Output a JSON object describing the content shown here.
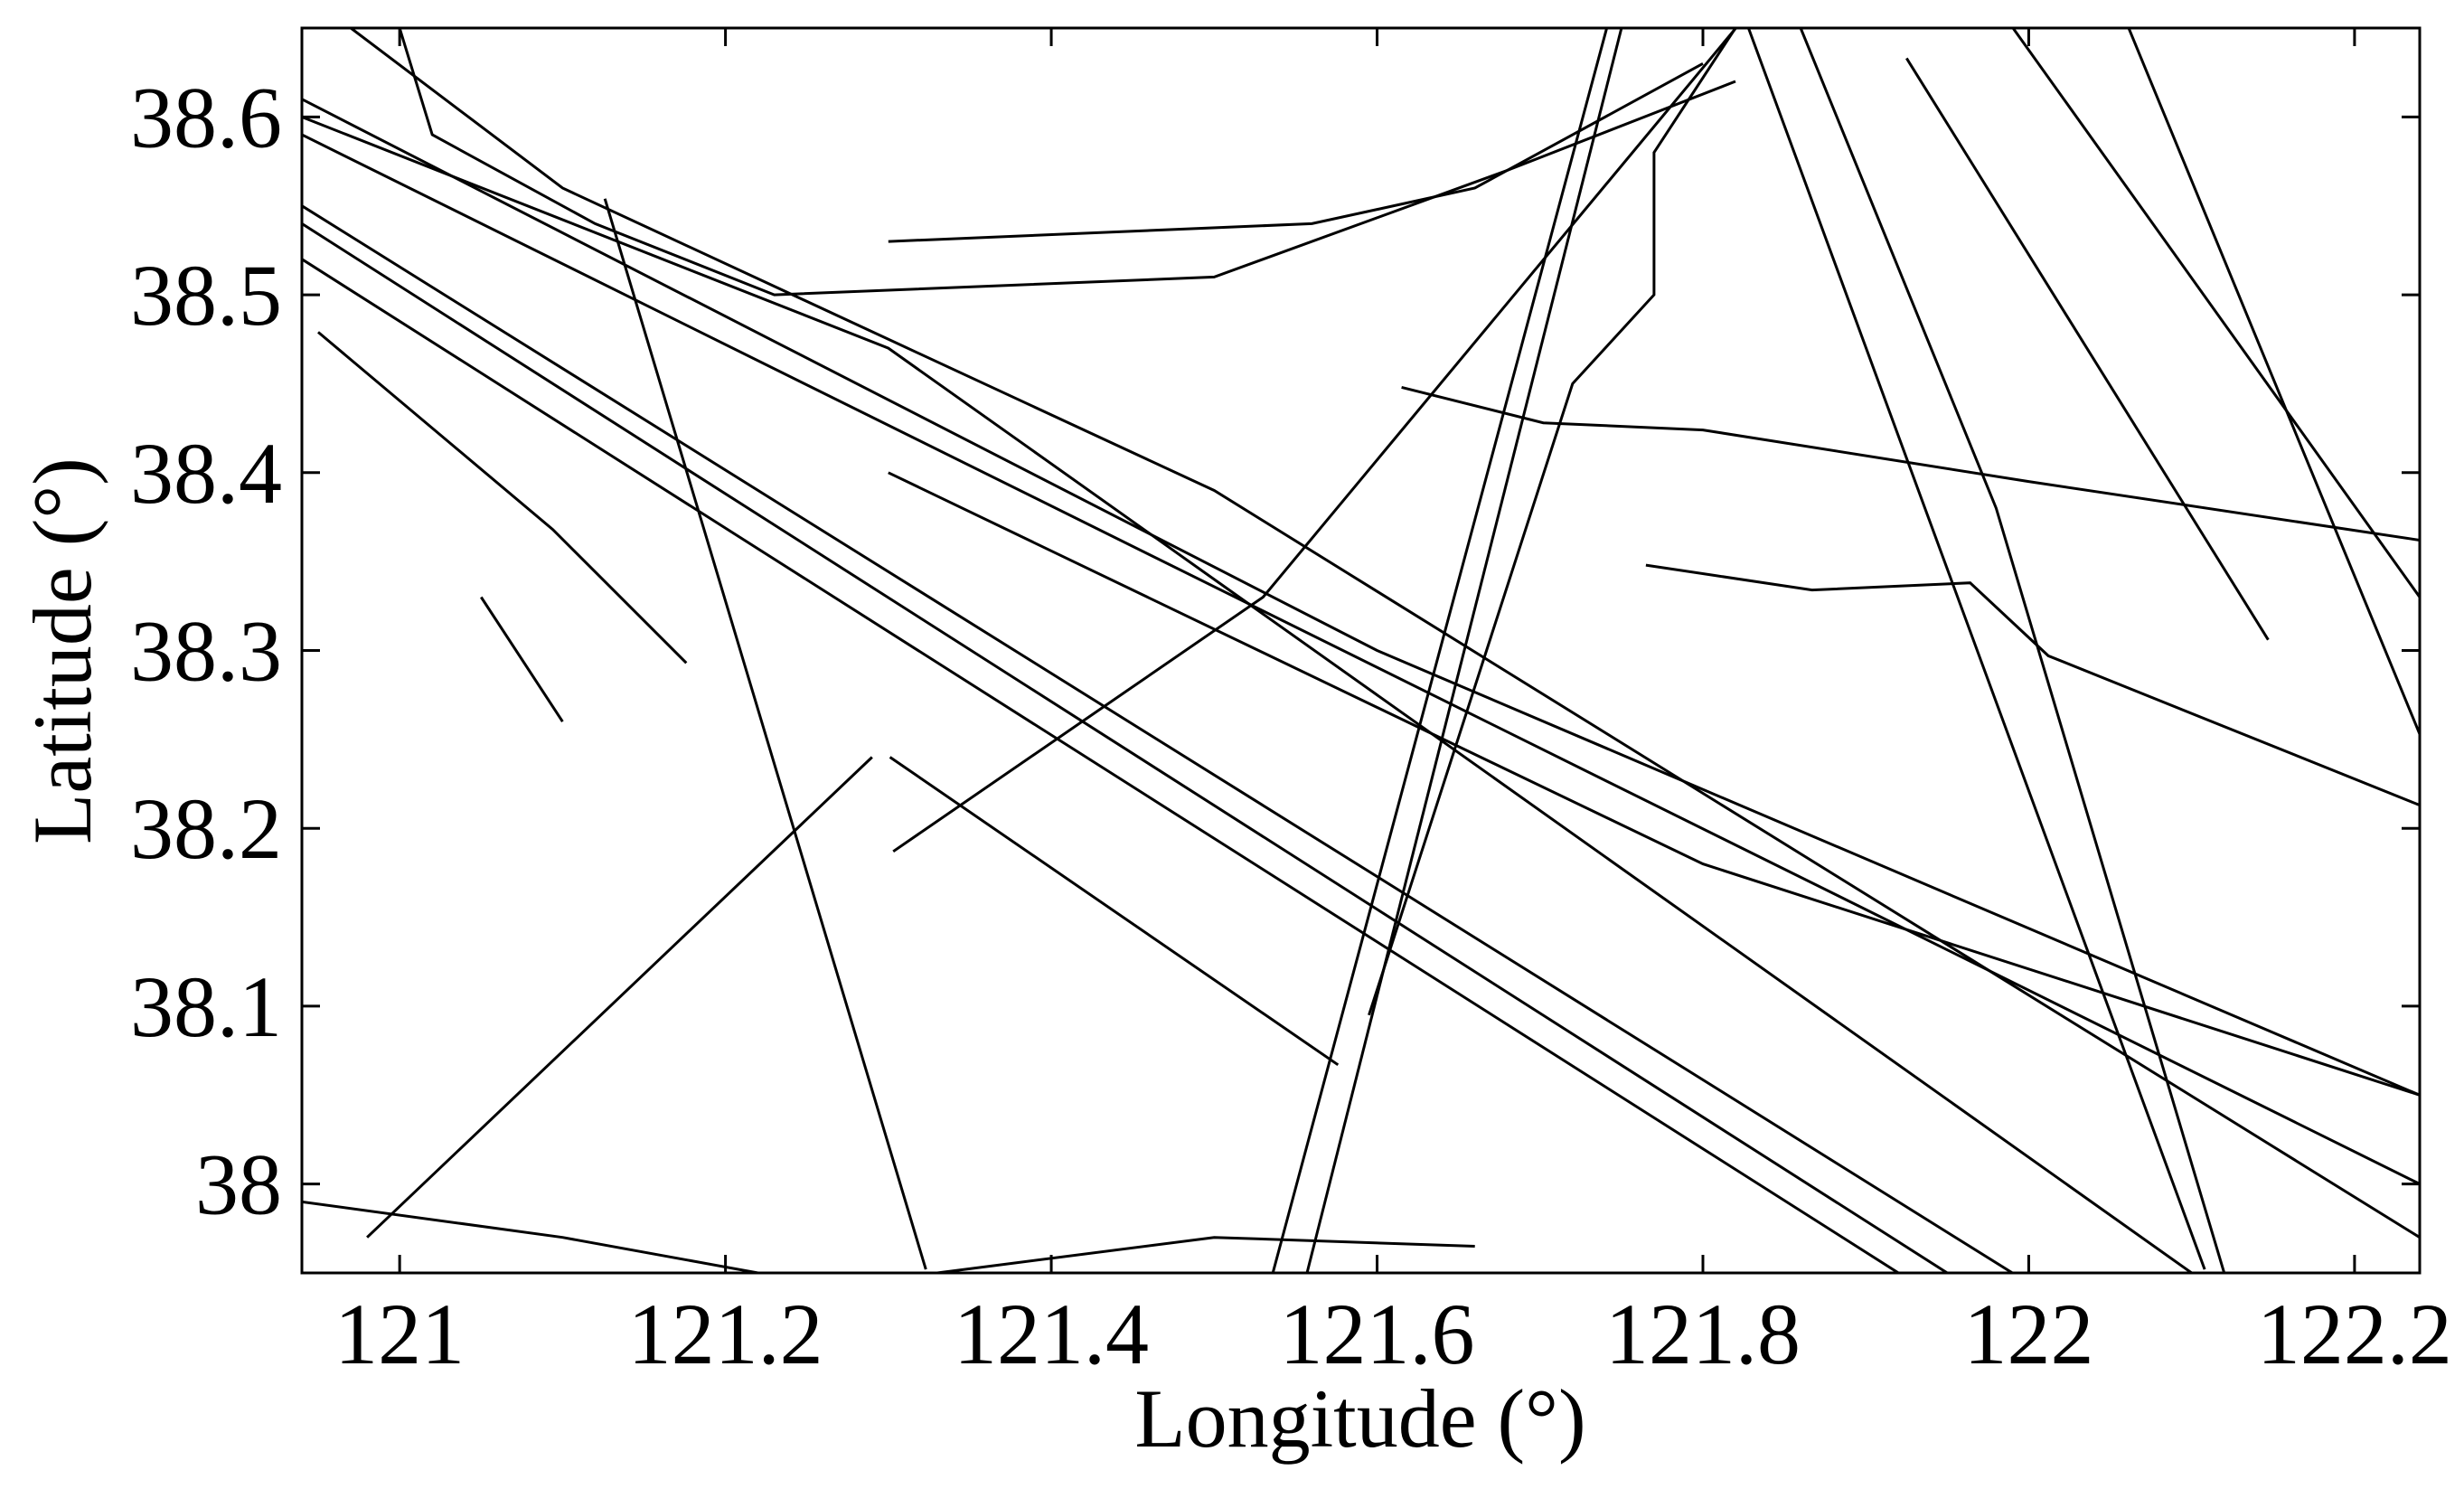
{
  "chart_data": {
    "type": "line",
    "xlabel": "Longitude (°)",
    "ylabel": "Latitude (°)",
    "xlim": [
      120.94,
      122.24
    ],
    "ylim": [
      37.95,
      38.65
    ],
    "xticks": [
      121,
      121.2,
      121.4,
      121.6,
      121.8,
      122,
      122.2
    ],
    "yticks": [
      38,
      38.1,
      38.2,
      38.3,
      38.4,
      38.5,
      38.6
    ],
    "color": "#000000",
    "series": [
      {
        "x": [
          120.94,
          121.95
        ],
        "values": [
          38.54,
          37.95
        ]
      },
      {
        "x": [
          120.94,
          121.92
        ],
        "values": [
          38.52,
          37.95
        ]
      },
      {
        "x": [
          120.94,
          121.99
        ],
        "values": [
          38.55,
          37.95
        ]
      },
      {
        "x": [
          120.94,
          121.3,
          122.1
        ],
        "values": [
          38.6,
          38.47,
          37.95
        ]
      },
      {
        "x": [
          120.94,
          122.24
        ],
        "values": [
          38.59,
          38.0
        ]
      },
      {
        "x": [
          120.94,
          121.6,
          122.24
        ],
        "values": [
          38.61,
          38.3,
          38.05
        ]
      },
      {
        "x": [
          120.97,
          121.1,
          121.5,
          122.24
        ],
        "values": [
          38.65,
          38.56,
          38.39,
          37.97
        ]
      },
      {
        "x": [
          121.126,
          121.323
        ],
        "values": [
          38.554,
          37.952
        ]
      },
      {
        "x": [
          120.98,
          121.29
        ],
        "values": [
          37.97,
          38.24
        ]
      },
      {
        "x": [
          121.303,
          121.53,
          121.823
        ],
        "values": [
          38.187,
          38.33,
          38.653
        ]
      },
      {
        "x": [
          121.536,
          121.741
        ],
        "values": [
          37.95,
          38.65
        ]
      },
      {
        "x": [
          121.557,
          121.75
        ],
        "values": [
          37.95,
          38.65
        ]
      },
      {
        "x": [
          121.595,
          121.72,
          121.77,
          121.77,
          121.82
        ],
        "values": [
          38.095,
          38.45,
          38.5,
          38.58,
          38.65
        ]
      },
      {
        "x": [
          121.828,
          122.108
        ],
        "values": [
          38.65,
          37.952
        ]
      },
      {
        "x": [
          121.86,
          121.98,
          122.12
        ],
        "values": [
          38.65,
          38.38,
          37.95
        ]
      },
      {
        "x": [
          121.925,
          122.147
        ],
        "values": [
          38.633,
          38.306
        ]
      },
      {
        "x": [
          121.988,
          122.24
        ],
        "values": [
          38.653,
          38.33
        ]
      },
      {
        "x": [
          122.06,
          122.24
        ],
        "values": [
          38.653,
          38.253
        ]
      },
      {
        "x": [
          121.0,
          121.02,
          121.12,
          121.23,
          121.5,
          121.68,
          121.82
        ],
        "values": [
          38.65,
          38.59,
          38.54,
          38.5,
          38.51,
          38.57,
          38.62
        ]
      },
      {
        "x": [
          121.3,
          121.56,
          121.66,
          121.8
        ],
        "values": [
          38.53,
          38.54,
          38.56,
          38.63
        ]
      },
      {
        "x": [
          121.615,
          121.702,
          121.8,
          122.0,
          122.24
        ],
        "values": [
          38.448,
          38.428,
          38.424,
          38.395,
          38.362
        ]
      },
      {
        "x": [
          121.765,
          121.867,
          121.964,
          122.012,
          122.24
        ],
        "values": [
          38.348,
          38.334,
          38.338,
          38.297,
          38.213
        ]
      },
      {
        "x": [
          120.94,
          121.1,
          121.22
        ],
        "values": [
          37.99,
          37.97,
          37.95
        ]
      },
      {
        "x": [
          121.33,
          121.5,
          121.66
        ],
        "values": [
          37.95,
          37.97,
          37.965
        ]
      },
      {
        "x": [
          120.95,
          121.094,
          121.176
        ],
        "values": [
          38.479,
          38.368,
          38.293
        ]
      },
      {
        "x": [
          121.301,
          121.576
        ],
        "values": [
          38.24,
          38.067
        ]
      },
      {
        "x": [
          121.05,
          121.1
        ],
        "values": [
          38.33,
          38.26
        ]
      },
      {
        "x": [
          121.3,
          121.8,
          122.24
        ],
        "values": [
          38.4,
          38.18,
          38.05
        ]
      }
    ]
  }
}
